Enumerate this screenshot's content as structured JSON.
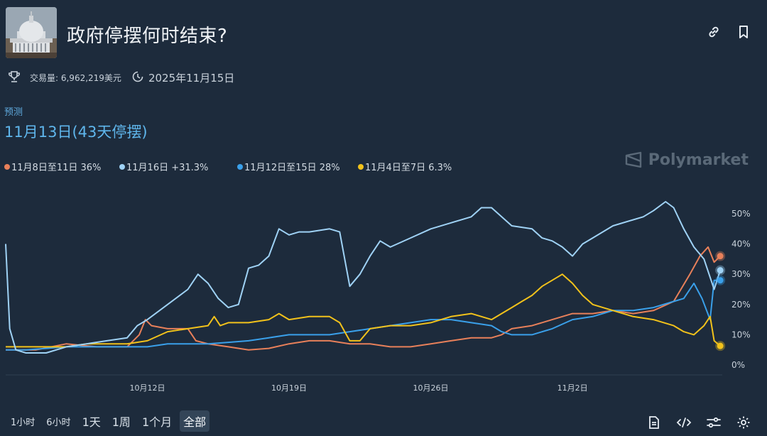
{
  "market": {
    "title": "政府停摆何时结束?",
    "volume_label": "交易量: 6,962,219美元",
    "end_date": "2025年11月15日",
    "image_icon": "capitol-dome-image"
  },
  "forecast": {
    "label": "预测",
    "value": "11月13日(43天停摆)"
  },
  "watermark": "Polymarket",
  "colors": {
    "orange": "#e8805a",
    "light_blue": "#9fd2f5",
    "blue": "#3aa0ea",
    "yellow": "#f2c21b"
  },
  "chart_data": {
    "type": "line",
    "x_ticks": [
      "10月12日",
      "10月19日",
      "10月26日",
      "11月2日"
    ],
    "x_tick_positions": [
      12,
      19,
      26,
      33
    ],
    "y_ticks": [
      "50%",
      "40%",
      "30%",
      "20%",
      "10%",
      "0%"
    ],
    "y_tick_values": [
      50,
      40,
      30,
      20,
      10,
      0
    ],
    "ylim": [
      0,
      55
    ],
    "xlim": [
      5,
      40.4
    ],
    "x_unit": "days (Oct = day-of-month, Nov 2 = 33)",
    "series": [
      {
        "name": "11月8日至11日",
        "legend": "11月8日至11日 36%",
        "color_key": "orange",
        "points": [
          [
            5,
            5
          ],
          [
            6.5,
            5
          ],
          [
            8,
            7
          ],
          [
            9.5,
            6
          ],
          [
            11,
            6
          ],
          [
            11.6,
            10
          ],
          [
            11.9,
            15
          ],
          [
            12.2,
            13
          ],
          [
            13,
            12
          ],
          [
            14,
            12
          ],
          [
            14.4,
            8
          ],
          [
            15,
            7
          ],
          [
            16,
            6
          ],
          [
            17,
            5
          ],
          [
            18,
            5.5
          ],
          [
            19,
            7
          ],
          [
            20,
            8
          ],
          [
            21,
            8
          ],
          [
            22,
            7
          ],
          [
            23,
            7
          ],
          [
            24,
            6
          ],
          [
            25,
            6
          ],
          [
            26,
            7
          ],
          [
            27,
            8
          ],
          [
            28,
            9
          ],
          [
            29,
            9
          ],
          [
            29.5,
            10
          ],
          [
            30,
            12
          ],
          [
            31,
            13
          ],
          [
            32,
            15
          ],
          [
            33,
            17
          ],
          [
            34,
            17
          ],
          [
            35,
            18
          ],
          [
            36,
            17
          ],
          [
            37,
            18
          ],
          [
            38,
            21
          ],
          [
            38.8,
            30
          ],
          [
            39.3,
            36
          ],
          [
            39.7,
            39
          ],
          [
            40,
            34
          ],
          [
            40.3,
            36
          ]
        ],
        "end_value": 36
      },
      {
        "name": "11月16日",
        "legend": "11月16日 +31.3%",
        "color_key": "light_blue",
        "points": [
          [
            5,
            40
          ],
          [
            5.2,
            12
          ],
          [
            5.5,
            5
          ],
          [
            6,
            4
          ],
          [
            7,
            4
          ],
          [
            8,
            6
          ],
          [
            9,
            7
          ],
          [
            10,
            8
          ],
          [
            11,
            9
          ],
          [
            11.5,
            13
          ],
          [
            12,
            15
          ],
          [
            13,
            20
          ],
          [
            14,
            25
          ],
          [
            14.5,
            30
          ],
          [
            15,
            27
          ],
          [
            15.5,
            22
          ],
          [
            16,
            19
          ],
          [
            16.5,
            20
          ],
          [
            17,
            32
          ],
          [
            17.5,
            33
          ],
          [
            18,
            36
          ],
          [
            18.5,
            45
          ],
          [
            19,
            43
          ],
          [
            19.5,
            44
          ],
          [
            20,
            44
          ],
          [
            21,
            45
          ],
          [
            21.5,
            44
          ],
          [
            22,
            26
          ],
          [
            22.5,
            30
          ],
          [
            23,
            36
          ],
          [
            23.5,
            41
          ],
          [
            24,
            39
          ],
          [
            25,
            42
          ],
          [
            26,
            45
          ],
          [
            27,
            47
          ],
          [
            28,
            49
          ],
          [
            28.5,
            52
          ],
          [
            29,
            52
          ],
          [
            30,
            46
          ],
          [
            31,
            45
          ],
          [
            31.5,
            42
          ],
          [
            32,
            41
          ],
          [
            32.5,
            39
          ],
          [
            33,
            36
          ],
          [
            33.5,
            40
          ],
          [
            34,
            42
          ],
          [
            35,
            46
          ],
          [
            36,
            48
          ],
          [
            36.5,
            49
          ],
          [
            37,
            51
          ],
          [
            37.6,
            54
          ],
          [
            38,
            52
          ],
          [
            38.5,
            45
          ],
          [
            39,
            39
          ],
          [
            39.5,
            35
          ],
          [
            40,
            25
          ],
          [
            40.3,
            31.3
          ]
        ],
        "end_value": 31.3
      },
      {
        "name": "11月12日至15日",
        "legend": "11月12日至15日 28%",
        "color_key": "blue",
        "points": [
          [
            5,
            5
          ],
          [
            6,
            5
          ],
          [
            7,
            5.5
          ],
          [
            8,
            6
          ],
          [
            9,
            6
          ],
          [
            10,
            6
          ],
          [
            11,
            6
          ],
          [
            12,
            6
          ],
          [
            13,
            7
          ],
          [
            14,
            7
          ],
          [
            15,
            7
          ],
          [
            16,
            7.5
          ],
          [
            17,
            8
          ],
          [
            18,
            9
          ],
          [
            19,
            10
          ],
          [
            20,
            10
          ],
          [
            21,
            10
          ],
          [
            22,
            11
          ],
          [
            23,
            12
          ],
          [
            24,
            13
          ],
          [
            25,
            14
          ],
          [
            26,
            15
          ],
          [
            27,
            15
          ],
          [
            28,
            14
          ],
          [
            29,
            13
          ],
          [
            29.5,
            11
          ],
          [
            30,
            10
          ],
          [
            31,
            10
          ],
          [
            32,
            12
          ],
          [
            33,
            15
          ],
          [
            34,
            16
          ],
          [
            35,
            18
          ],
          [
            36,
            18
          ],
          [
            37,
            19
          ],
          [
            38,
            21
          ],
          [
            38.5,
            22
          ],
          [
            39,
            27
          ],
          [
            39.4,
            22
          ],
          [
            39.8,
            15
          ],
          [
            40,
            28
          ],
          [
            40.3,
            28
          ]
        ],
        "end_value": 28
      },
      {
        "name": "11月4日至7日",
        "legend": "11月4日至7日 6.3%",
        "color_key": "yellow",
        "points": [
          [
            5,
            6
          ],
          [
            6,
            6
          ],
          [
            7,
            6
          ],
          [
            8,
            6
          ],
          [
            9,
            7
          ],
          [
            10,
            7
          ],
          [
            11,
            7
          ],
          [
            12,
            8
          ],
          [
            13,
            11
          ],
          [
            14,
            12
          ],
          [
            15,
            13
          ],
          [
            15.3,
            16
          ],
          [
            15.6,
            13
          ],
          [
            16,
            14
          ],
          [
            17,
            14
          ],
          [
            18,
            15
          ],
          [
            18.5,
            17
          ],
          [
            19,
            15
          ],
          [
            20,
            16
          ],
          [
            21,
            16
          ],
          [
            21.5,
            14
          ],
          [
            22,
            8
          ],
          [
            22.5,
            8
          ],
          [
            23,
            12
          ],
          [
            24,
            13
          ],
          [
            25,
            13
          ],
          [
            26,
            14
          ],
          [
            27,
            16
          ],
          [
            28,
            17
          ],
          [
            29,
            15
          ],
          [
            29.5,
            17
          ],
          [
            30,
            19
          ],
          [
            30.5,
            21
          ],
          [
            31,
            23
          ],
          [
            31.5,
            26
          ],
          [
            32,
            28
          ],
          [
            32.5,
            30
          ],
          [
            33,
            27
          ],
          [
            33.5,
            23
          ],
          [
            34,
            20
          ],
          [
            35,
            18
          ],
          [
            36,
            16
          ],
          [
            37,
            15
          ],
          [
            38,
            13
          ],
          [
            38.5,
            11
          ],
          [
            39,
            10
          ],
          [
            39.5,
            13
          ],
          [
            39.8,
            16
          ],
          [
            40,
            8
          ],
          [
            40.3,
            6.3
          ]
        ],
        "end_value": 6.3
      }
    ]
  },
  "time_ranges": [
    "1小时",
    "6小时",
    "1天",
    "1周",
    "1个月",
    "全部"
  ],
  "active_range": "全部"
}
